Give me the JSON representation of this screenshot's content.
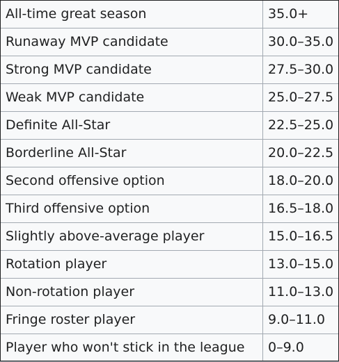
{
  "rows": [
    {
      "tier": "All-time great season",
      "range": "35.0+"
    },
    {
      "tier": "Runaway MVP candidate",
      "range": "30.0–35.0"
    },
    {
      "tier": "Strong MVP candidate",
      "range": "27.5–30.0"
    },
    {
      "tier": "Weak MVP candidate",
      "range": "25.0–27.5"
    },
    {
      "tier": "Definite All-Star",
      "range": "22.5–25.0"
    },
    {
      "tier": "Borderline All-Star",
      "range": "20.0–22.5"
    },
    {
      "tier": "Second offensive option",
      "range": "18.0–20.0"
    },
    {
      "tier": "Third offensive option",
      "range": "16.5–18.0"
    },
    {
      "tier": "Slightly above-average player",
      "range": "15.0–16.5"
    },
    {
      "tier": "Rotation player",
      "range": "13.0–15.0"
    },
    {
      "tier": "Non-rotation player",
      "range": "11.0–13.0"
    },
    {
      "tier": "Fringe roster player",
      "range": "9.0–11.0"
    },
    {
      "tier": "Player who won't stick in the league",
      "range": "0–9.0"
    }
  ]
}
